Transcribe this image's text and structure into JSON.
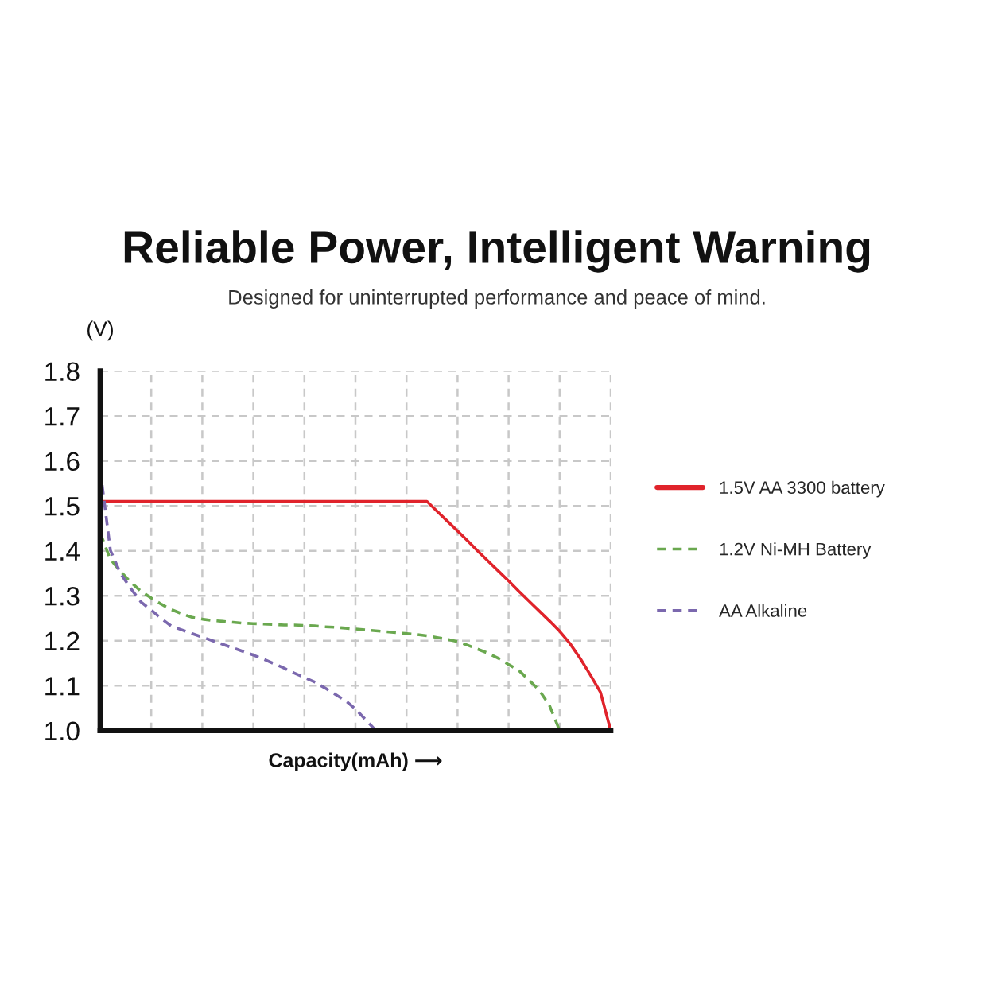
{
  "chart_data": {
    "type": "line",
    "title": "Reliable Power, Intelligent Warning",
    "subtitle": "Designed for uninterrupted performance and peace of mind.",
    "xlabel": "Capacity(mAh) ⟶",
    "ylabel": "(V)",
    "categories": [
      null,
      null,
      null,
      null,
      null,
      null,
      null,
      null,
      null,
      null,
      null,
      null,
      null,
      null,
      null,
      null,
      null,
      null,
      null,
      null,
      null,
      null,
      null,
      null,
      null,
      null,
      null,
      null,
      null,
      null,
      null,
      null,
      null,
      null,
      null,
      null,
      null,
      null,
      null,
      null,
      null,
      null,
      null,
      null,
      null,
      null,
      null,
      null,
      null,
      null,
      null
    ],
    "series": [
      {
        "name": "1.5V AA 3300 battery",
        "color": "#e0232b",
        "line_style": "solid",
        "values": [
          1.51,
          1.51,
          1.51,
          1.51,
          1.51,
          1.51,
          1.51,
          1.51,
          1.51,
          1.51,
          1.51,
          1.51,
          1.51,
          1.51,
          1.51,
          1.51,
          1.51,
          1.51,
          1.51,
          1.51,
          1.51,
          1.51,
          1.51,
          1.51,
          1.51,
          1.51,
          1.51,
          1.51,
          1.51,
          1.51,
          1.51,
          1.51,
          1.51,
          1.488,
          1.466,
          1.444,
          1.422,
          1.399,
          1.377,
          1.355,
          1.333,
          1.31,
          1.288,
          1.266,
          1.244,
          1.221,
          1.194,
          1.161,
          1.124,
          1.085,
          1.0
        ]
      },
      {
        "name": "1.2V Ni-MH Battery",
        "color": "#6aa84f",
        "line_style": "dashed",
        "values": [
          1.44,
          1.381,
          1.354,
          1.33,
          1.31,
          1.295,
          1.281,
          1.269,
          1.26,
          1.252,
          1.248,
          1.245,
          1.243,
          1.241,
          1.239,
          1.238,
          1.237,
          1.236,
          1.235,
          1.235,
          1.234,
          1.233,
          1.231,
          1.23,
          1.228,
          1.226,
          1.224,
          1.222,
          1.22,
          1.218,
          1.216,
          1.214,
          1.211,
          1.207,
          1.203,
          1.198,
          1.19,
          1.181,
          1.172,
          1.161,
          1.147,
          1.134,
          1.112,
          1.09,
          1.056,
          1.0,
          null,
          null,
          null,
          null,
          null
        ]
      },
      {
        "name": "AA Alkaline",
        "color": "#7b68ae",
        "line_style": "dashed",
        "values": [
          1.58,
          1.401,
          1.349,
          1.316,
          1.286,
          1.268,
          1.249,
          1.232,
          1.224,
          1.216,
          1.208,
          1.2,
          1.192,
          1.184,
          1.176,
          1.168,
          1.159,
          1.149,
          1.139,
          1.128,
          1.118,
          1.108,
          1.095,
          1.081,
          1.067,
          1.048,
          1.024,
          1.0,
          null,
          null,
          null,
          null,
          null,
          null,
          null,
          null,
          null,
          null,
          null,
          null,
          null,
          null,
          null,
          null,
          null,
          null,
          null,
          null,
          null,
          null,
          null
        ]
      }
    ],
    "ylim": [
      1.0,
      1.8
    ],
    "yticks": [
      {
        "value": 1.0,
        "label": "1.0"
      },
      1.1,
      1.2,
      1.3,
      1.4,
      1.5,
      1.6,
      1.7,
      1.8
    ],
    "grid": true,
    "legend": "right",
    "tick_labels": "y"
  }
}
